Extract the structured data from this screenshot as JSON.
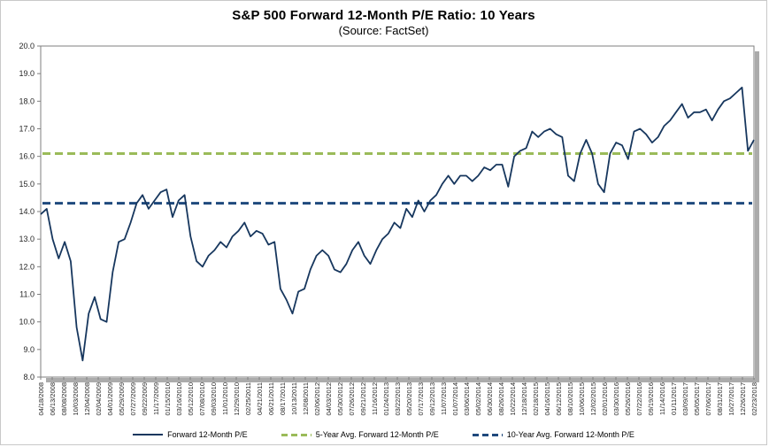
{
  "chart_data": {
    "type": "line",
    "title": "S&P 500 Forward 12-Month P/E Ratio: 10 Years",
    "subtitle": "(Source: FactSet)",
    "ylim": [
      8.0,
      20.0
    ],
    "ytick_step": 1.0,
    "grid": false,
    "legend_position": "bottom",
    "y_ticks": [
      "20.0",
      "19.0",
      "18.0",
      "17.0",
      "16.0",
      "15.0",
      "14.0",
      "13.0",
      "12.0",
      "11.0",
      "10.0",
      "9.0",
      "8.0"
    ],
    "x_tick_labels": [
      "04/18/2008",
      "06/13/2008",
      "08/08/2008",
      "10/03/2008",
      "12/04/2008",
      "02/04/2009",
      "04/01/2009",
      "05/29/2009",
      "07/27/2009",
      "09/22/2009",
      "11/17/2009",
      "01/15/2010",
      "03/16/2010",
      "05/12/2010",
      "07/08/2010",
      "09/03/2010",
      "11/01/2010",
      "12/29/2010",
      "02/25/2011",
      "04/21/2011",
      "06/21/2011",
      "08/17/2011",
      "10/13/2011",
      "12/08/2011",
      "02/06/2012",
      "04/03/2012",
      "05/30/2012",
      "07/26/2012",
      "09/21/2012",
      "11/16/2012",
      "01/24/2013",
      "03/22/2013",
      "05/20/2013",
      "07/17/2013",
      "09/12/2013",
      "11/07/2013",
      "01/07/2014",
      "03/06/2014",
      "05/02/2014",
      "06/30/2014",
      "08/26/2014",
      "10/22/2014",
      "12/18/2014",
      "02/18/2015",
      "04/16/2015",
      "06/12/2015",
      "08/10/2015",
      "10/06/2015",
      "12/02/2015",
      "02/01/2016",
      "03/30/2016",
      "05/26/2016",
      "07/22/2016",
      "09/19/2016",
      "11/14/2016",
      "01/11/2017",
      "03/09/2017",
      "05/05/2017",
      "07/06/2017",
      "08/31/2017",
      "10/27/2017",
      "12/26/2017",
      "02/23/2018"
    ],
    "series": [
      {
        "name": "Forward 12-Month P/E",
        "style": "solid",
        "color": "#17375e",
        "x_start": "04/18/2008",
        "x_end": "02/23/2018",
        "frequency": "approx. monthly samples of weekly data",
        "values": [
          13.9,
          14.1,
          13.0,
          12.3,
          12.9,
          12.2,
          9.8,
          8.6,
          10.3,
          10.9,
          10.1,
          10.0,
          11.8,
          12.9,
          13.0,
          13.6,
          14.3,
          14.6,
          14.1,
          14.4,
          14.7,
          14.8,
          13.8,
          14.4,
          14.6,
          13.1,
          12.2,
          12.0,
          12.4,
          12.6,
          12.9,
          12.7,
          13.1,
          13.3,
          13.6,
          13.1,
          13.3,
          13.2,
          12.8,
          12.9,
          11.2,
          10.8,
          10.3,
          11.1,
          11.2,
          11.9,
          12.4,
          12.6,
          12.4,
          11.9,
          11.8,
          12.1,
          12.6,
          12.9,
          12.4,
          12.1,
          12.6,
          13.0,
          13.2,
          13.6,
          13.4,
          14.1,
          13.8,
          14.4,
          14.0,
          14.4,
          14.6,
          15.0,
          15.3,
          15.0,
          15.3,
          15.3,
          15.1,
          15.3,
          15.6,
          15.5,
          15.7,
          15.7,
          14.9,
          16.0,
          16.2,
          16.3,
          16.9,
          16.7,
          16.9,
          17.0,
          16.8,
          16.7,
          15.3,
          15.1,
          16.1,
          16.6,
          16.1,
          15.0,
          14.7,
          16.1,
          16.5,
          16.4,
          15.9,
          16.9,
          17.0,
          16.8,
          16.5,
          16.7,
          17.1,
          17.3,
          17.6,
          17.9,
          17.4,
          17.6,
          17.6,
          17.7,
          17.3,
          17.7,
          18.0,
          18.1,
          18.3,
          18.5,
          16.2,
          16.6
        ]
      },
      {
        "name": "5-Year Avg. Forward 12-Month P/E",
        "style": "dashed",
        "color": "#9bbb59",
        "value": 16.1
      },
      {
        "name": "10-Year Avg. Forward 12-Month P/E",
        "style": "dashed",
        "color": "#1f497d",
        "value": 14.3
      }
    ]
  }
}
